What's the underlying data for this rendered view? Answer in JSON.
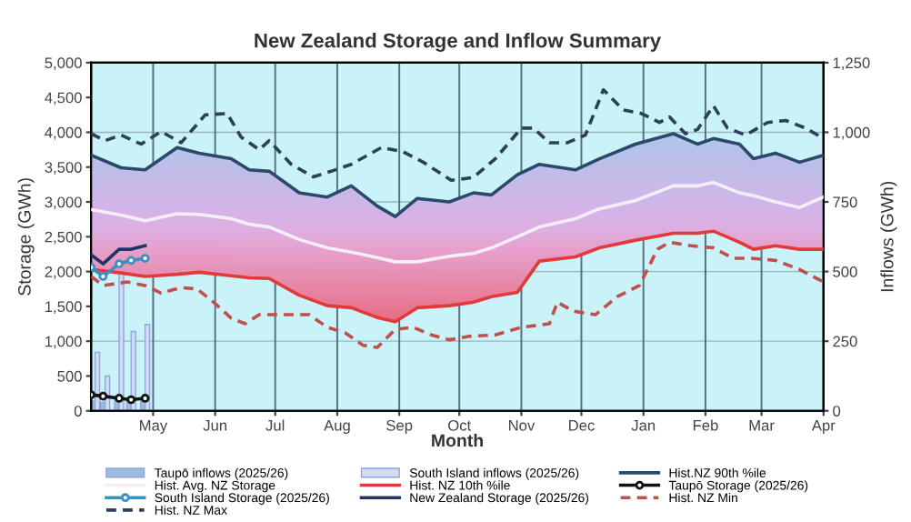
{
  "chart_data": {
    "type": "line",
    "title": "New Zealand Storage and Inflow Summary",
    "xlabel": "Month",
    "ylabel": "Storage (GWh)",
    "y2label": "Inflows (GWh)",
    "xlim": [
      "2025-03-31",
      "2026-04-01"
    ],
    "xticks": [
      {
        "value": "2025-05-01",
        "label": "May"
      },
      {
        "value": "2025-06-01",
        "label": "Jun"
      },
      {
        "value": "2025-07-01",
        "label": "Jul"
      },
      {
        "value": "2025-08-01",
        "label": "Aug"
      },
      {
        "value": "2025-09-01",
        "label": "Sep"
      },
      {
        "value": "2025-10-01",
        "label": "Oct"
      },
      {
        "value": "2025-11-01",
        "label": "Nov"
      },
      {
        "value": "2025-12-01",
        "label": "Dec"
      },
      {
        "value": "2026-01-01",
        "label": "Jan"
      },
      {
        "value": "2026-02-01",
        "label": "Feb"
      },
      {
        "value": "2026-03-01",
        "label": "Mar"
      },
      {
        "value": "2026-04-01",
        "label": "Apr"
      }
    ],
    "ylim": [
      0,
      5000
    ],
    "yticks": [
      0,
      500,
      {
        "value": 1000,
        "label": "1,000"
      },
      {
        "value": 1500,
        "label": "1,500"
      },
      {
        "value": 2000,
        "label": "2,000"
      },
      {
        "value": 2500,
        "label": "2,500"
      },
      {
        "value": 3000,
        "label": "3,000"
      },
      {
        "value": 3500,
        "label": "3,500"
      },
      {
        "value": 4000,
        "label": "4,000"
      },
      {
        "value": 4500,
        "label": "4,500"
      },
      {
        "value": 5000,
        "label": "5,000"
      }
    ],
    "y2lim": [
      0,
      1250
    ],
    "y2ticks": [
      0,
      250,
      500,
      750,
      {
        "value": 1000,
        "label": "1,000"
      },
      {
        "value": 1250,
        "label": "1,250"
      }
    ],
    "grid": true,
    "legend": "bottom",
    "series": [
      {
        "name": "Taupō inflows (2025/26)",
        "type": "bar",
        "axis": "y2",
        "color": "#9dbbe0",
        "x": [
          "2025-04-02",
          "2025-04-07",
          "2025-04-14",
          "2025-04-20",
          "2025-04-27"
        ],
        "values": [
          35,
          30,
          40,
          35,
          40
        ]
      },
      {
        "name": "South Island inflows (2025/26)",
        "type": "bar",
        "axis": "y2",
        "color": "#d3daf6",
        "x": [
          "2025-04-02",
          "2025-04-07",
          "2025-04-14",
          "2025-04-20",
          "2025-04-27"
        ],
        "values": [
          210,
          125,
          510,
          285,
          310
        ]
      },
      {
        "name": "Hist.NZ 90th %ile",
        "color": "#2b4a6b",
        "line_style": "solid",
        "marker": "none",
        "x": [
          "2025-03-31",
          "2025-04-15",
          "2025-04-27",
          "2025-05-13",
          "2025-05-24",
          "2025-06-09",
          "2025-06-18",
          "2025-06-28",
          "2025-07-13",
          "2025-07-27",
          "2025-08-08",
          "2025-08-21",
          "2025-08-30",
          "2025-09-10",
          "2025-09-26",
          "2025-10-08",
          "2025-10-17",
          "2025-10-30",
          "2025-11-10",
          "2025-11-28",
          "2025-12-10",
          "2025-12-28",
          "2026-01-16",
          "2026-01-28",
          "2026-02-05",
          "2026-02-18",
          "2026-02-25",
          "2026-03-08",
          "2026-03-20",
          "2026-04-01"
        ],
        "values": [
          3670,
          3490,
          3460,
          3780,
          3700,
          3620,
          3460,
          3440,
          3130,
          3070,
          3230,
          2940,
          2790,
          3050,
          3000,
          3130,
          3100,
          3390,
          3540,
          3460,
          3620,
          3830,
          3980,
          3830,
          3910,
          3830,
          3620,
          3700,
          3570,
          3670
        ]
      },
      {
        "name": "Hist. Avg. NZ Storage",
        "color": "#f4eef6",
        "line_style": "solid",
        "marker": "none",
        "x": [
          "2025-03-31",
          "2025-04-15",
          "2025-04-27",
          "2025-05-13",
          "2025-05-24",
          "2025-06-09",
          "2025-06-18",
          "2025-06-28",
          "2025-07-13",
          "2025-07-27",
          "2025-08-08",
          "2025-08-21",
          "2025-08-30",
          "2025-09-10",
          "2025-09-26",
          "2025-10-08",
          "2025-10-17",
          "2025-10-30",
          "2025-11-10",
          "2025-11-28",
          "2025-12-10",
          "2025-12-28",
          "2026-01-16",
          "2026-01-28",
          "2026-02-05",
          "2026-02-18",
          "2026-02-25",
          "2026-03-08",
          "2026-03-20",
          "2026-04-01"
        ],
        "values": [
          2890,
          2810,
          2730,
          2830,
          2820,
          2760,
          2680,
          2640,
          2460,
          2340,
          2280,
          2200,
          2140,
          2140,
          2220,
          2260,
          2340,
          2500,
          2640,
          2760,
          2900,
          3020,
          3230,
          3230,
          3280,
          3130,
          3090,
          3000,
          2920,
          3070
        ],
        "lower": [
          2030,
          1980,
          1930,
          1960,
          1990,
          1940,
          1910,
          1900,
          1660,
          1510,
          1480,
          1340,
          1280,
          1480,
          1510,
          1560,
          1640,
          1700,
          2150,
          2210,
          2340,
          2450,
          2550,
          2550,
          2580,
          2420,
          2320,
          2370,
          2320,
          2320
        ],
        "upper": [
          3670,
          3490,
          3460,
          3780,
          3700,
          3620,
          3460,
          3440,
          3130,
          3070,
          3230,
          2940,
          2790,
          3050,
          3000,
          3130,
          3100,
          3390,
          3540,
          3460,
          3620,
          3830,
          3980,
          3830,
          3910,
          3830,
          3620,
          3700,
          3570,
          3670
        ]
      },
      {
        "name": "Hist. NZ 10th %ile",
        "color": "#e03a3a",
        "line_style": "solid",
        "marker": "none",
        "x": [
          "2025-03-31",
          "2025-04-15",
          "2025-04-27",
          "2025-05-13",
          "2025-05-24",
          "2025-06-09",
          "2025-06-18",
          "2025-06-28",
          "2025-07-13",
          "2025-07-27",
          "2025-08-08",
          "2025-08-21",
          "2025-08-30",
          "2025-09-10",
          "2025-09-26",
          "2025-10-08",
          "2025-10-17",
          "2025-10-30",
          "2025-11-10",
          "2025-11-28",
          "2025-12-10",
          "2025-12-28",
          "2026-01-16",
          "2026-01-28",
          "2026-02-05",
          "2026-02-18",
          "2026-02-25",
          "2026-03-08",
          "2026-03-20",
          "2026-04-01"
        ],
        "values": [
          2030,
          1980,
          1930,
          1960,
          1990,
          1940,
          1910,
          1900,
          1660,
          1510,
          1480,
          1340,
          1280,
          1480,
          1510,
          1560,
          1640,
          1700,
          2150,
          2210,
          2340,
          2450,
          2550,
          2550,
          2580,
          2420,
          2320,
          2370,
          2320,
          2320
        ]
      },
      {
        "name": "Taupō Storage (2025/26)",
        "color": "#111111",
        "line_style": "solid",
        "marker": "circle",
        "x": [
          "2025-03-31",
          "2025-04-06",
          "2025-04-14",
          "2025-04-20",
          "2025-04-27"
        ],
        "values": [
          230,
          210,
          180,
          160,
          180
        ]
      },
      {
        "name": "South Island Storage (2025/26)",
        "color": "#3c8fc0",
        "line_style": "solid",
        "marker": "circle",
        "x": [
          "2025-03-31",
          "2025-04-06",
          "2025-04-14",
          "2025-04-20",
          "2025-04-27"
        ],
        "values": [
          2060,
          1930,
          2110,
          2160,
          2190
        ]
      },
      {
        "name": "New Zealand Storage (2025/26)",
        "color": "#1f3566",
        "line_style": "solid",
        "marker": "none",
        "x": [
          "2025-03-31",
          "2025-04-06",
          "2025-04-14",
          "2025-04-20",
          "2025-04-27"
        ],
        "values": [
          2240,
          2110,
          2320,
          2320,
          2370
        ]
      },
      {
        "name": "Hist. NZ Min",
        "color": "#c0504d",
        "line_style": "dashed",
        "marker": "none",
        "x": [
          "2025-03-31",
          "2025-04-06",
          "2025-04-18",
          "2025-04-27",
          "2025-05-05",
          "2025-05-15",
          "2025-05-23",
          "2025-06-01",
          "2025-06-09",
          "2025-06-16",
          "2025-06-23",
          "2025-07-06",
          "2025-07-18",
          "2025-07-27",
          "2025-08-05",
          "2025-08-14",
          "2025-08-21",
          "2025-08-30",
          "2025-09-08",
          "2025-09-17",
          "2025-09-26",
          "2025-10-06",
          "2025-10-19",
          "2025-11-01",
          "2025-11-15",
          "2025-11-19",
          "2025-11-27",
          "2025-12-08",
          "2025-12-19",
          "2025-12-30",
          "2026-01-08",
          "2026-01-14",
          "2026-01-25",
          "2026-02-05",
          "2026-02-15",
          "2026-02-24",
          "2026-03-08",
          "2026-03-20",
          "2026-04-01"
        ],
        "values": [
          1930,
          1800,
          1850,
          1800,
          1690,
          1770,
          1750,
          1540,
          1330,
          1250,
          1380,
          1380,
          1380,
          1200,
          1120,
          940,
          910,
          1170,
          1200,
          1090,
          1020,
          1070,
          1090,
          1200,
          1250,
          1560,
          1430,
          1380,
          1640,
          1800,
          2320,
          2420,
          2370,
          2340,
          2190,
          2190,
          2160,
          2030,
          1850
        ]
      },
      {
        "name": "Hist. NZ Max",
        "color": "#2f3f55",
        "line_style": "dashed",
        "marker": "none",
        "x": [
          "2025-03-31",
          "2025-04-07",
          "2025-04-15",
          "2025-04-25",
          "2025-05-05",
          "2025-05-15",
          "2025-05-27",
          "2025-06-07",
          "2025-06-14",
          "2025-06-23",
          "2025-06-28",
          "2025-07-09",
          "2025-07-20",
          "2025-07-29",
          "2025-08-08",
          "2025-08-23",
          "2025-09-03",
          "2025-09-13",
          "2025-09-27",
          "2025-10-08",
          "2025-10-19",
          "2025-11-01",
          "2025-11-07",
          "2025-11-15",
          "2025-11-24",
          "2025-12-03",
          "2025-12-12",
          "2025-12-22",
          "2025-12-31",
          "2026-01-09",
          "2026-01-14",
          "2026-01-22",
          "2026-01-28",
          "2026-02-05",
          "2026-02-12",
          "2026-02-21",
          "2026-03-04",
          "2026-03-13",
          "2026-03-23",
          "2026-04-01"
        ],
        "values": [
          3980,
          3880,
          3960,
          3830,
          4010,
          3850,
          4250,
          4270,
          3930,
          3750,
          3880,
          3540,
          3360,
          3440,
          3540,
          3780,
          3720,
          3570,
          3310,
          3350,
          3620,
          4060,
          4060,
          3850,
          3850,
          3960,
          4610,
          4320,
          4270,
          4140,
          4220,
          3980,
          4040,
          4380,
          4060,
          3960,
          4140,
          4170,
          4060,
          3910
        ]
      }
    ]
  }
}
